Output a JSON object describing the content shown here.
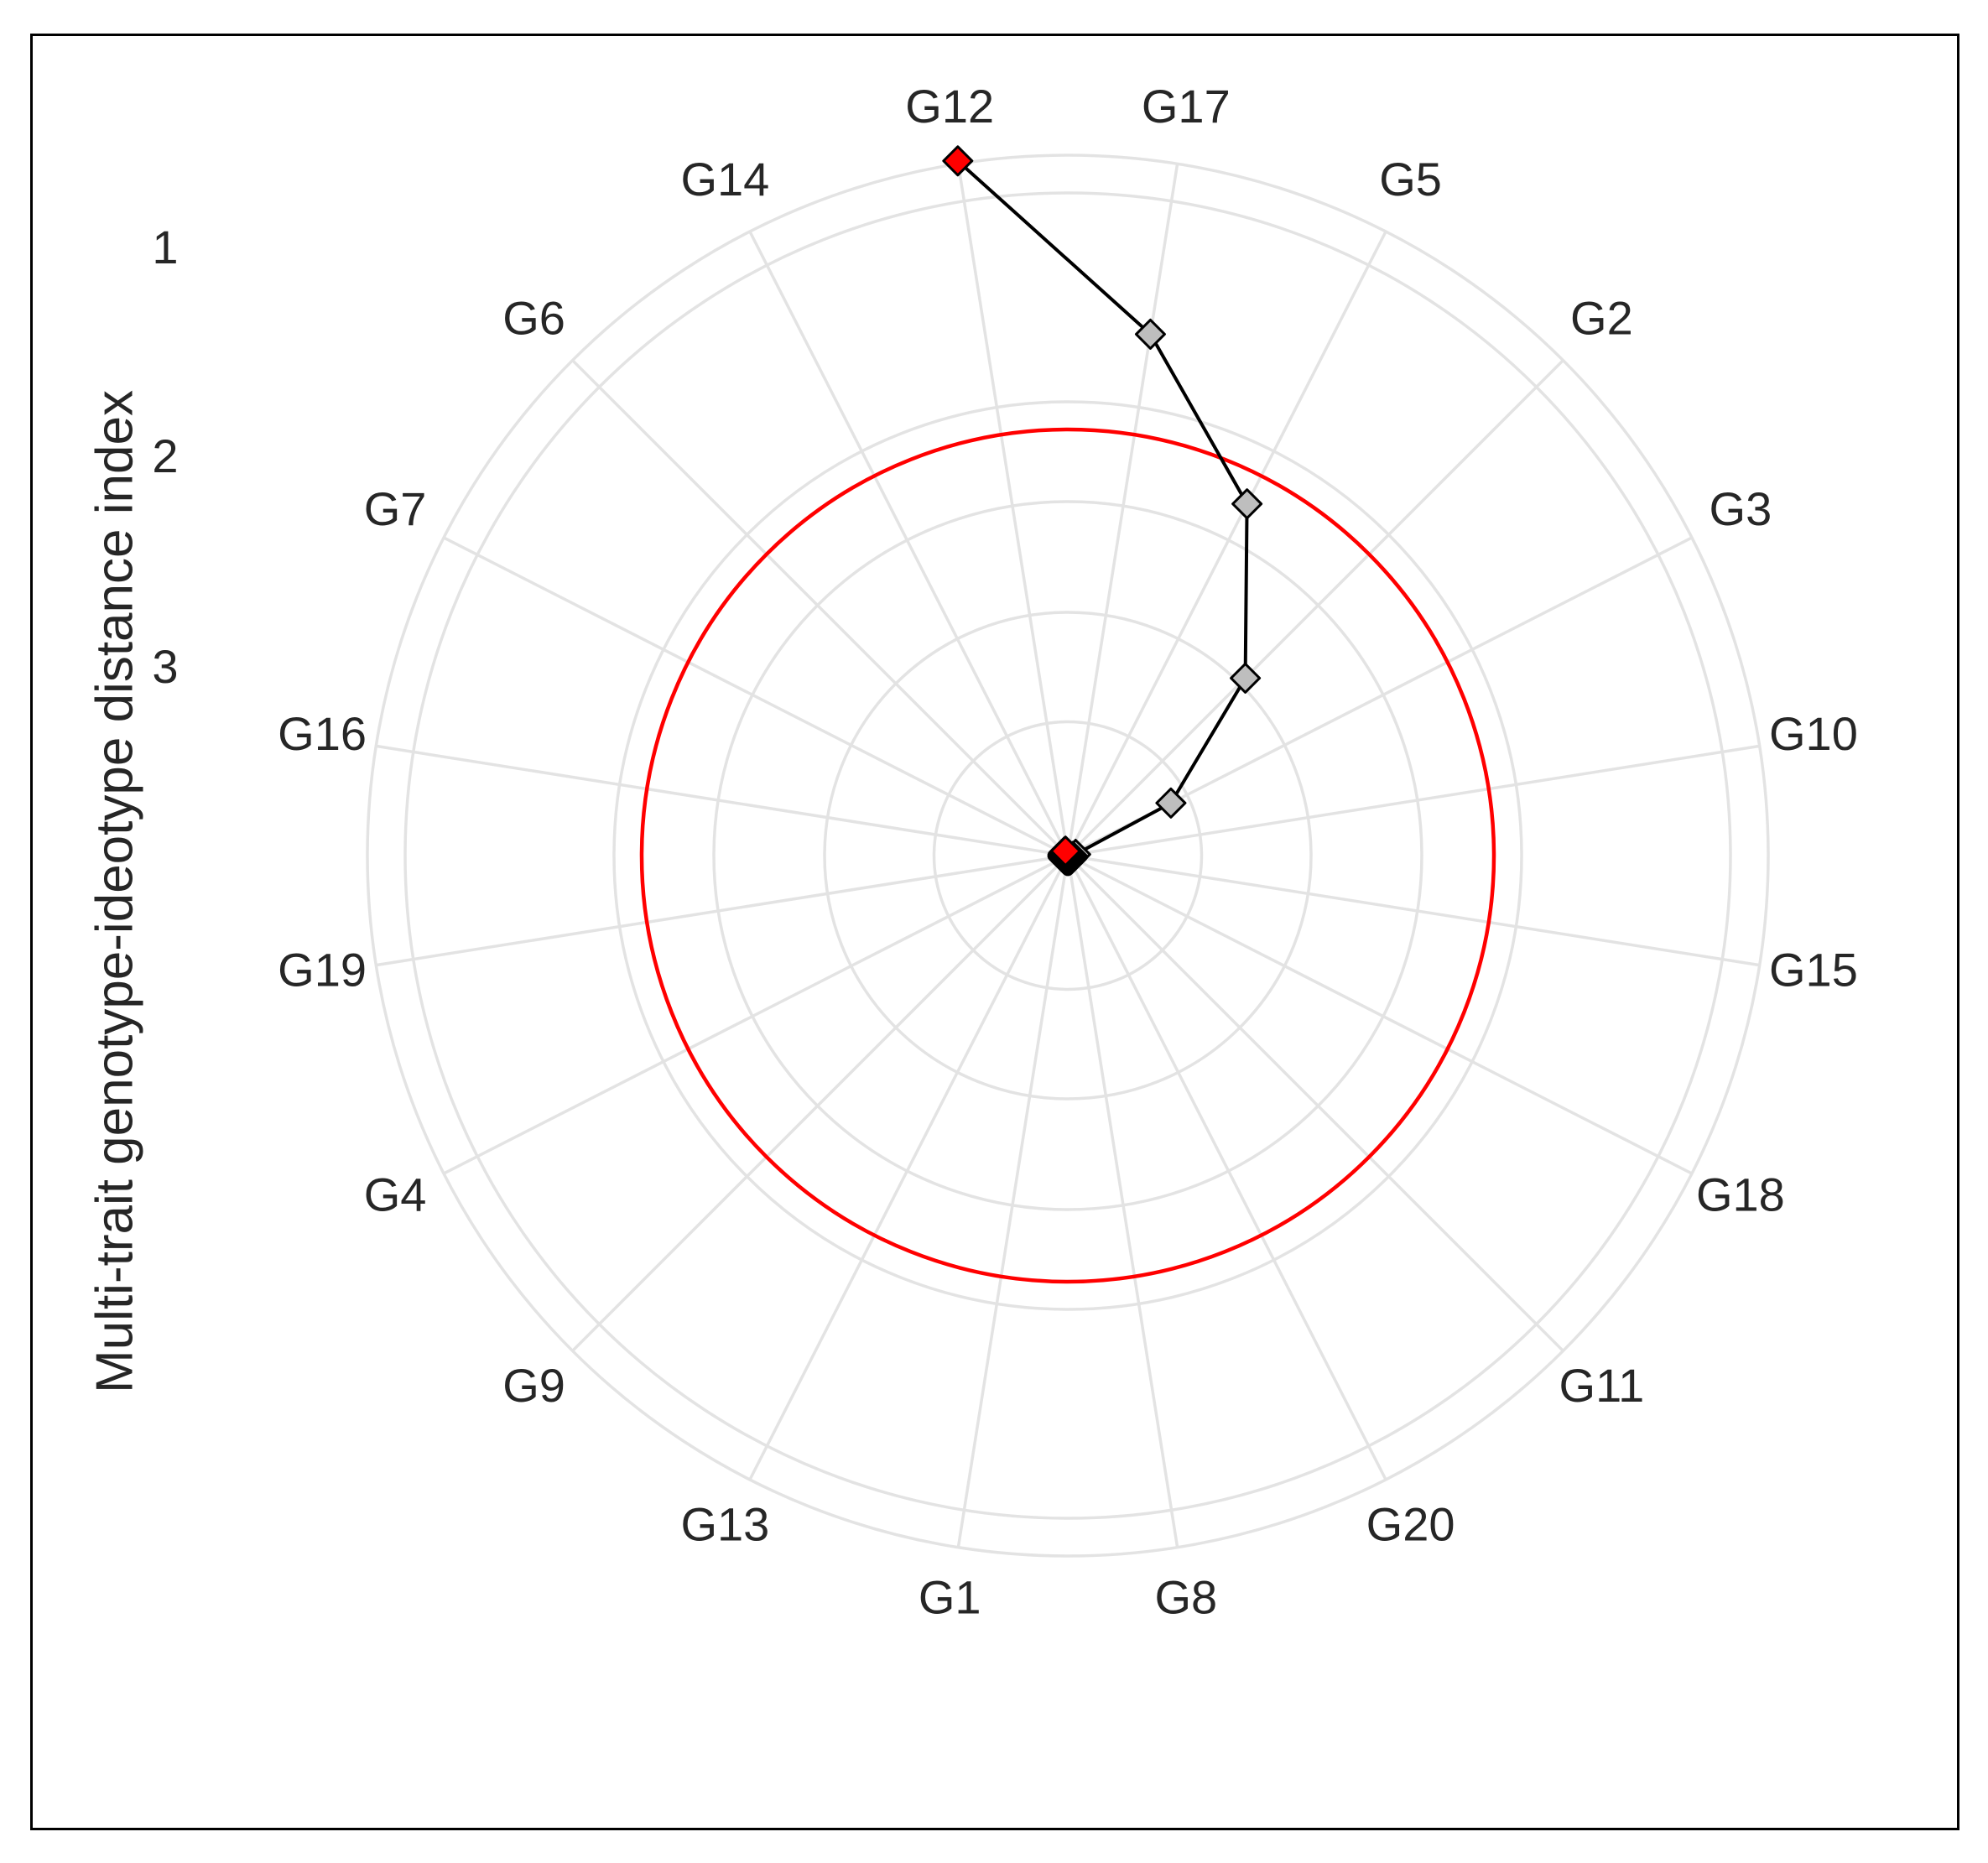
{
  "chart_data": {
    "type": "radar",
    "ylabel": "Multi-trait genotype-ideotype distance index",
    "categories": [
      "G12",
      "G17",
      "G5",
      "G2",
      "G3",
      "G10",
      "G15",
      "G18",
      "G11",
      "G20",
      "G8",
      "G1",
      "G13",
      "G9",
      "G4",
      "G19",
      "G16",
      "G7",
      "G6",
      "G14"
    ],
    "radial_ticks": [
      "1",
      "2",
      "3"
    ],
    "radial_scale": "reversed (smallest index at outer edge, largest at centre)",
    "grid": true,
    "cutpoint_circle_color": "#ff0000",
    "selected_color": "#ff0000",
    "unselected_color": "#bebebe",
    "line_color": "#000000",
    "selected": [
      "G12",
      "G14",
      "G6",
      "G7"
    ],
    "series": [
      {
        "values": [
          0.99,
          1.82,
          2.45,
          3.13,
          3.77,
          4.28,
          4.61,
          4.83,
          4.97,
          5.07,
          5.14,
          5.2,
          5.26,
          5.3,
          5.34,
          5.38,
          5.42,
          5.46,
          5.5,
          5.55
        ]
      }
    ]
  }
}
